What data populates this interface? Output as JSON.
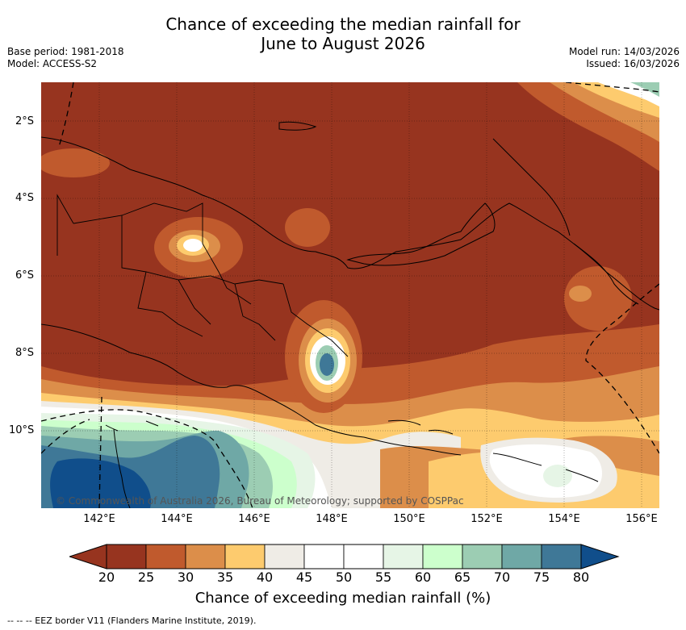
{
  "title_line1": "Chance of exceeding the median rainfall for",
  "title_line2": "June to August 2026",
  "base_period": "Base period: 1981-2018",
  "model": "Model: ACCESS-S2",
  "model_run": "Model run: 14/03/2026",
  "issued": "Issued: 16/03/2026",
  "lat_labels": [
    "2°S",
    "4°S",
    "6°S",
    "8°S",
    "10°S"
  ],
  "lon_labels": [
    "142°E",
    "144°E",
    "146°E",
    "148°E",
    "150°E",
    "152°E",
    "154°E",
    "156°E"
  ],
  "copyright": "© Commonwealth of Australia 2026, Bureau of Meteorology; supported by COSPPac",
  "colorbar": {
    "ticks": [
      "20",
      "25",
      "30",
      "35",
      "40",
      "45",
      "50",
      "55",
      "60",
      "65",
      "70",
      "75",
      "80"
    ],
    "colors": [
      "#97341f",
      "#c05a2d",
      "#dc8e4a",
      "#fdcb6e",
      "#efece6",
      "#ffffff",
      "#ffffff",
      "#e6f5e6",
      "#ccffcc",
      "#9ccdb3",
      "#6fa8a6",
      "#3f7897"
    ],
    "under_color": "#97341f",
    "over_color": "#104e8b"
  },
  "colorbar_label": "Chance of exceeding median rainfall (%)",
  "legend_eez": "-- -- -- EEZ border V11 (Flanders Marine Institute, 2019)."
}
